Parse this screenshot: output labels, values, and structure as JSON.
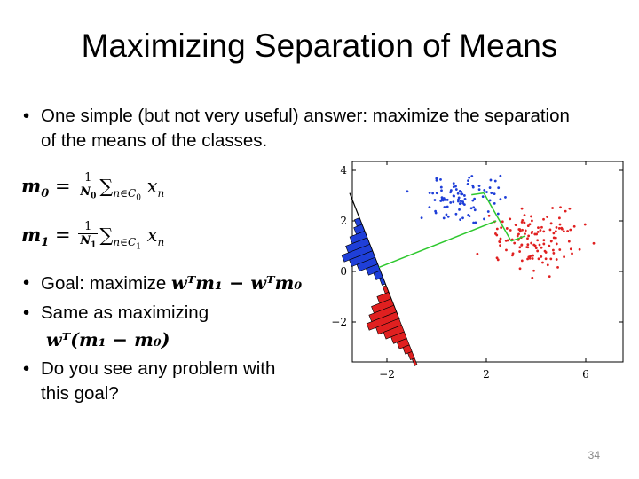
{
  "slide": {
    "title": "Maximizing Separation of Means",
    "bullet1_line1": "One simple (but not very useful) answer: maximize the separation",
    "bullet1_line2": "of the means of the classes.",
    "eq_m0_lhs": "m",
    "eq_m0_sub": "0",
    "eq_m0_frac_num": "1",
    "eq_m0_frac_den": "N",
    "eq_m0_frac_den_sub": "0",
    "eq_m0_sum": "∑",
    "eq_m0_sum_sub": "n∈C",
    "eq_m0_sum_sub2": "0",
    "eq_m0_x": "x",
    "eq_m0_x_sub": "n",
    "eq_m1_lhs": "m",
    "eq_m1_sub": "1",
    "eq_m1_frac_num": "1",
    "eq_m1_frac_den": "N",
    "eq_m1_frac_den_sub": "1",
    "eq_m1_sum": "∑",
    "eq_m1_sum_sub": "n∈C",
    "eq_m1_sum_sub2": "1",
    "eq_m1_x": "x",
    "eq_m1_x_sub": "n",
    "bullet2_text": "Goal: maximize ",
    "bullet2_expr": "wᵀm₁ − wᵀm₀",
    "bullet3_text": "Same as maximizing",
    "bullet3_expr": "wᵀ(m₁ − m₀)",
    "bullet4_line1": "Do you see any problem with",
    "bullet4_line2": "this goal?",
    "slide_number": "34"
  },
  "chart_data": {
    "type": "scatter",
    "title": "",
    "xlabel": "",
    "ylabel": "",
    "xlim": [
      -4,
      7
    ],
    "ylim": [
      -3.5,
      4.3
    ],
    "x_ticks": [
      "−2",
      "2",
      "6"
    ],
    "y_ticks": [
      "4",
      "2",
      "0",
      "−2"
    ],
    "grid": false,
    "series": [
      {
        "color": "#1f3fd8",
        "cluster_center": [
          1.3,
          2.9
        ],
        "spread": [
          1.6,
          0.5
        ]
      },
      {
        "color": "#e02020",
        "cluster_center": [
          4.1,
          1.3
        ],
        "spread": [
          1.7,
          0.6
        ]
      }
    ],
    "means": {
      "blue": [
        1.9,
        3.1
      ],
      "red": [
        3.0,
        1.2
      ]
    },
    "projection_line_color": "#2ec82e",
    "histogram_colors": {
      "blue": "#1f3fd8",
      "red": "#e02020"
    }
  }
}
